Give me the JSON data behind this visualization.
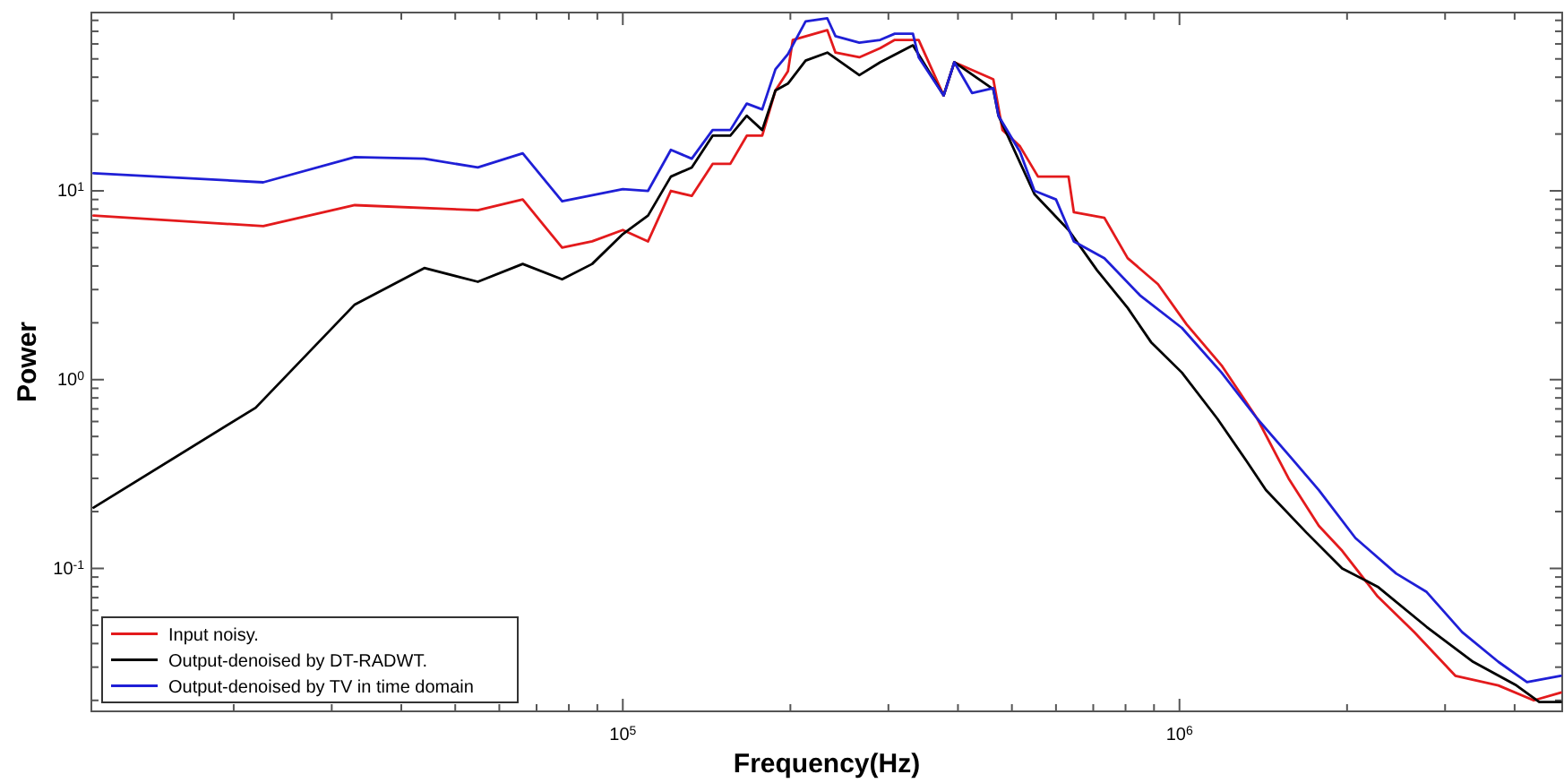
{
  "chart_data": {
    "type": "line",
    "xlabel": "Frequency(Hz)",
    "ylabel": "Power",
    "log": "xy",
    "grid": false,
    "legend": "bottom left",
    "line_style": "solid",
    "marker": "none",
    "xlim": [
      11100,
      4870000
    ],
    "ylim": [
      0.0175,
      88
    ],
    "xticks": [
      {
        "value": 20000,
        "label": null
      },
      {
        "value": 30000,
        "label": null
      },
      {
        "value": 40000,
        "label": null
      },
      {
        "value": 50000,
        "label": null
      },
      {
        "value": 60000,
        "label": null
      },
      {
        "value": 70000,
        "label": null
      },
      {
        "value": 80000,
        "label": null
      },
      {
        "value": 90000,
        "label": null
      },
      {
        "value": 100000,
        "label": "10$^{5}$"
      },
      {
        "value": 200000,
        "label": null
      },
      {
        "value": 300000,
        "label": null
      },
      {
        "value": 400000,
        "label": null
      },
      {
        "value": 500000,
        "label": null
      },
      {
        "value": 600000,
        "label": null
      },
      {
        "value": 700000,
        "label": null
      },
      {
        "value": 800000,
        "label": null
      },
      {
        "value": 900000,
        "label": null
      },
      {
        "value": 1000000,
        "label": "10$^{6}$"
      },
      {
        "value": 2000000,
        "label": null
      },
      {
        "value": 3000000,
        "label": null
      },
      {
        "value": 4000000,
        "label": null
      }
    ],
    "yticks": [
      {
        "value": 0.02,
        "label": null
      },
      {
        "value": 0.03,
        "label": null
      },
      {
        "value": 0.04,
        "label": null
      },
      {
        "value": 0.05,
        "label": null
      },
      {
        "value": 0.06,
        "label": null
      },
      {
        "value": 0.07,
        "label": null
      },
      {
        "value": 0.08,
        "label": null
      },
      {
        "value": 0.09,
        "label": null
      },
      {
        "value": 0.1,
        "label": "10$^{-1}$"
      },
      {
        "value": 0.2,
        "label": null
      },
      {
        "value": 0.3,
        "label": null
      },
      {
        "value": 0.4,
        "label": null
      },
      {
        "value": 0.5,
        "label": null
      },
      {
        "value": 0.6,
        "label": null
      },
      {
        "value": 0.7,
        "label": null
      },
      {
        "value": 0.8,
        "label": null
      },
      {
        "value": 0.9,
        "label": null
      },
      {
        "value": 1,
        "label": "10$^{0}$"
      },
      {
        "value": 2,
        "label": null
      },
      {
        "value": 3,
        "label": null
      },
      {
        "value": 4,
        "label": null
      },
      {
        "value": 5,
        "label": null
      },
      {
        "value": 6,
        "label": null
      },
      {
        "value": 7,
        "label": null
      },
      {
        "value": 8,
        "label": null
      },
      {
        "value": 9,
        "label": null
      },
      {
        "value": 10,
        "label": "10$^{1}$"
      },
      {
        "value": 20,
        "label": null
      },
      {
        "value": 30,
        "label": null
      },
      {
        "value": 40,
        "label": null
      },
      {
        "value": 50,
        "label": null
      },
      {
        "value": 60,
        "label": null
      },
      {
        "value": 70,
        "label": null
      },
      {
        "value": 80,
        "label": null
      }
    ],
    "series": [
      {
        "name": "Input noisy.",
        "color": "#e31a1c",
        "x": [
          11200,
          22600,
          33000,
          54900,
          66100,
          77800,
          88100,
          100000,
          111000,
          122000,
          133000,
          145000,
          156000,
          167000,
          178000,
          188000,
          198000,
          202000,
          233000,
          241000,
          266000,
          290000,
          308000,
          340000,
          377000,
          394000,
          463000,
          481000,
          517000,
          557000,
          632000,
          646000,
          733000,
          807000,
          915000,
          1030000,
          1190000,
          1380000,
          1570000,
          1780000,
          1960000,
          2270000,
          2640000,
          3130000,
          3740000,
          4330000,
          4840000
        ],
        "values": [
          7.4,
          6.5,
          8.4,
          7.9,
          9.0,
          5.0,
          5.4,
          6.2,
          5.4,
          10,
          9.4,
          13.9,
          13.9,
          19.6,
          19.6,
          34,
          43,
          63,
          71,
          54,
          51,
          57,
          63,
          63,
          32,
          48,
          39,
          21,
          17.2,
          11.9,
          11.9,
          7.7,
          7.2,
          4.4,
          3.2,
          1.96,
          1.19,
          0.62,
          0.3,
          0.168,
          0.124,
          0.071,
          0.046,
          0.027,
          0.024,
          0.02,
          0.022
        ]
      },
      {
        "name": "Output-denoised by DT-RADWT.",
        "color": "#000000",
        "x": [
          11200,
          21900,
          33000,
          44000,
          54900,
          66100,
          77800,
          88100,
          100000,
          111000,
          122000,
          133000,
          145000,
          156000,
          167000,
          178000,
          188000,
          198000,
          213000,
          233000,
          266000,
          290000,
          332000,
          377000,
          394000,
          463000,
          473000,
          549000,
          632000,
          711000,
          807000,
          889000,
          1010000,
          1170000,
          1320000,
          1430000,
          1690000,
          1960000,
          2270000,
          2780000,
          3370000,
          4030000,
          4430000,
          4840000
        ],
        "values": [
          0.21,
          0.71,
          2.5,
          3.9,
          3.3,
          4.1,
          3.4,
          4.1,
          5.9,
          7.4,
          11.9,
          13.3,
          19.6,
          19.6,
          25,
          21,
          34,
          37,
          49,
          54,
          41,
          48,
          59,
          32,
          48,
          34.5,
          25,
          9.6,
          6.2,
          3.8,
          2.4,
          1.58,
          1.09,
          0.62,
          0.37,
          0.26,
          0.155,
          0.1,
          0.08,
          0.049,
          0.032,
          0.024,
          0.0196,
          0.0196
        ]
      },
      {
        "name": "Output-denoised by TV in time domain",
        "color": "#1f1fd6",
        "x": [
          11200,
          22600,
          33000,
          44000,
          54900,
          66100,
          77800,
          100000,
          111000,
          122000,
          133000,
          145000,
          156000,
          167000,
          178000,
          188000,
          198000,
          213000,
          233000,
          241000,
          266000,
          290000,
          308000,
          332000,
          340000,
          377000,
          394000,
          424000,
          463000,
          473000,
          517000,
          549000,
          600000,
          646000,
          733000,
          849000,
          1010000,
          1190000,
          1380000,
          1570000,
          1780000,
          2070000,
          2450000,
          2780000,
          3220000,
          3740000,
          4210000,
          4840000
        ],
        "values": [
          12.4,
          11.1,
          15.1,
          14.8,
          13.3,
          15.8,
          8.8,
          10.2,
          10,
          16.5,
          14.8,
          21,
          21,
          29,
          27,
          44,
          53,
          79,
          82,
          66,
          61,
          63,
          68,
          68,
          51,
          32,
          48,
          33,
          35,
          25,
          16.1,
          10,
          9.0,
          5.4,
          4.4,
          2.8,
          1.88,
          1.09,
          0.62,
          0.4,
          0.26,
          0.145,
          0.094,
          0.075,
          0.046,
          0.032,
          0.025,
          0.027
        ]
      }
    ]
  }
}
